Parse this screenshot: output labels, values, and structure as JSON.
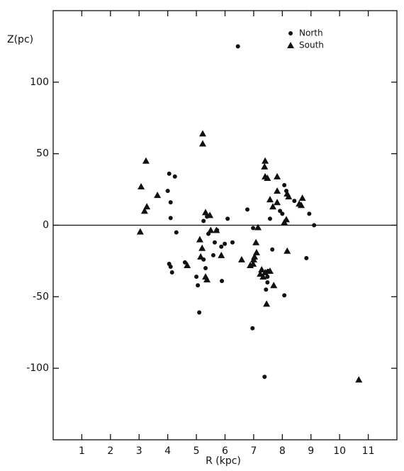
{
  "chart_data": {
    "type": "scatter",
    "x_label": "R (kpc)",
    "y_label": "Z(pc)",
    "xlim": [
      0,
      12
    ],
    "ylim": [
      -150,
      150
    ],
    "xticks": [
      1,
      2,
      3,
      4,
      5,
      6,
      7,
      8,
      9,
      10,
      11
    ],
    "yticks": [
      -100,
      -50,
      0,
      50,
      100
    ],
    "zero_line": true,
    "legend": "upper right",
    "series": [
      {
        "name": "North",
        "marker": "circle",
        "color": "#111111",
        "x": [
          6.45,
          4.05,
          4.25,
          4.0,
          4.1,
          4.1,
          4.05,
          4.1,
          4.15,
          4.3,
          4.6,
          5.0,
          5.05,
          5.1,
          5.25,
          5.25,
          5.37,
          5.42,
          5.64,
          5.72,
          5.87,
          5.99,
          6.09,
          6.26,
          5.89,
          5.59,
          5.32,
          6.78,
          6.98,
          6.96,
          7.38,
          7.43,
          7.48,
          7.48,
          7.5,
          7.57,
          7.65,
          8.07,
          7.92,
          8.0,
          8.07,
          8.14,
          8.42,
          8.84,
          8.94,
          9.11
        ],
        "values": [
          125,
          36,
          34,
          24,
          16,
          5,
          -27,
          -29,
          -33,
          -5,
          -26,
          -36,
          -42,
          -61,
          -24,
          3,
          6,
          -6,
          -12,
          -3.5,
          -15,
          -13,
          4.5,
          -12,
          -39,
          -21,
          -30,
          11,
          -2,
          -72,
          -106,
          -45,
          -40,
          -36,
          -32,
          4.5,
          -17,
          -49,
          10,
          8,
          28,
          24,
          17,
          -23,
          8,
          0
        ]
      },
      {
        "name": "South",
        "marker": "triangle",
        "color": "#111111",
        "x": [
          3.07,
          3.04,
          3.24,
          3.19,
          3.27,
          3.64,
          5.22,
          5.22,
          5.32,
          5.47,
          5.12,
          5.2,
          5.15,
          4.68,
          5.32,
          5.37,
          5.87,
          5.5,
          5.7,
          6.58,
          6.98,
          6.88,
          7.0,
          7.03,
          7.08,
          7.15,
          7.1,
          7.23,
          7.33,
          7.4,
          7.28,
          7.4,
          7.38,
          7.4,
          7.48,
          7.45,
          7.57,
          7.57,
          7.67,
          7.82,
          7.82,
          7.82,
          8.07,
          8.14,
          8.17,
          8.22,
          8.59,
          8.7,
          8.66,
          8.17,
          7.7,
          10.67
        ],
        "values": [
          27,
          -4.5,
          45,
          10,
          13,
          21,
          64,
          57,
          9,
          7,
          -10,
          -16,
          -22,
          -28,
          -36,
          -38,
          -21,
          -3.5,
          -3.5,
          -24,
          -27,
          -28,
          -24,
          -22,
          -12,
          -1.5,
          -19,
          -34,
          -36,
          -33,
          -31,
          45,
          41,
          34,
          33,
          -55,
          -32,
          18,
          13,
          34,
          24,
          16,
          2,
          4,
          22,
          20,
          15,
          19,
          14,
          -18,
          -42,
          -108
        ]
      }
    ]
  }
}
